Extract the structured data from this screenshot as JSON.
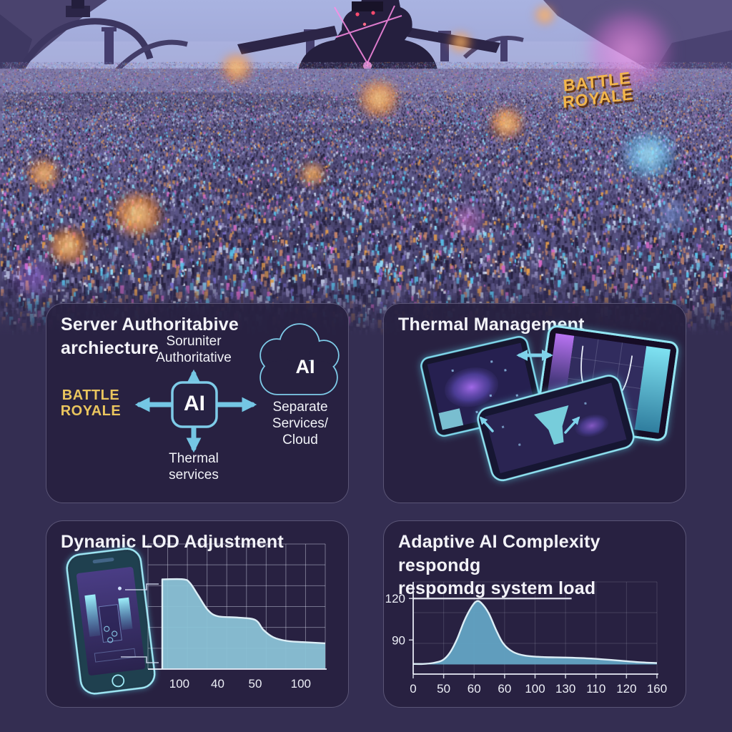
{
  "scene": {
    "sign": {
      "line1": "BATTLE",
      "line2": "ROYALE",
      "color": "#f2b64b"
    }
  },
  "panels": {
    "server_auth": {
      "title": "Server Authoritabive archiecture",
      "top_node": {
        "line1": "Soruniter",
        "line2": "Authoritative"
      },
      "left_node": {
        "line1": "BATTLE",
        "line2": "ROYALE",
        "color": "#eac55e"
      },
      "center_node": "AI",
      "cloud_node": "AI",
      "right_node": {
        "line1": "Separate",
        "line2": "Services/ Cloud"
      },
      "bottom_node": {
        "line1": "Thermal",
        "line2": "services"
      }
    },
    "thermal": {
      "title": "Thermal Management"
    },
    "lod": {
      "title": "Dynamic LOD Adjustment"
    },
    "adaptive": {
      "title_line1": "Adaptive AI Complexity respondg",
      "title_line2": "respomdg system load"
    }
  },
  "colors": {
    "accent_cyan": "#7ecbe8",
    "device_glow": "#5fd8f0",
    "gold": "#eac55e",
    "page_bg": "#342e52",
    "panel_bg": "#272140",
    "title_text": "#f3f3f8",
    "lod_fill": "#8ac2d6",
    "adaptive_fill": "#63a4c4",
    "chart_line": "#dceef6"
  },
  "chart_data": [
    {
      "id": "lod_chart",
      "type": "area",
      "title": "Dynamic LOD Adjustment",
      "xlabel": "",
      "ylabel": "",
      "x_tick_labels": [
        "100",
        "40",
        "50",
        "100"
      ],
      "x_tick_pos_pct": [
        10.5,
        34,
        57,
        85
      ],
      "x_values_pct": [
        0,
        13,
        17,
        22,
        28,
        34,
        46,
        57,
        62,
        68,
        76,
        86,
        100
      ],
      "y_values_pct": [
        73,
        73,
        70,
        60,
        48,
        43,
        42,
        40,
        32,
        26,
        23,
        22,
        21
      ],
      "baseline_pct": 0,
      "left_edge": true,
      "grid": "on",
      "legend": "none",
      "fill": "#8ac2d6",
      "line": "#dceef6",
      "note": "stepped declining LOD level; y-axis unlabeled, values given as % of plot height"
    },
    {
      "id": "adaptive_chart",
      "type": "area",
      "title": "Adaptive AI Complexity respondg respomdg system load",
      "xlabel": "",
      "ylabel": "",
      "x_tick_labels": [
        "0",
        "50",
        "60",
        "60",
        "100",
        "130",
        "110",
        "120",
        "160"
      ],
      "x_tick_pos_pct": [
        0,
        12.5,
        25,
        37.5,
        50,
        62.5,
        75,
        87.5,
        100
      ],
      "y_tick_labels": [
        "120",
        "90"
      ],
      "y_tick_pos_pct": [
        82,
        37
      ],
      "ref_line": {
        "label": "120",
        "y_pct": 82,
        "x_extent_pct": 65
      },
      "x_values_pct": [
        0,
        4,
        8,
        12,
        15,
        18,
        21,
        24,
        26,
        28,
        31,
        34,
        37,
        41,
        46,
        53,
        62,
        72,
        83,
        92,
        100
      ],
      "y_values_pct": [
        11,
        11,
        12,
        15,
        23,
        38,
        58,
        73,
        79,
        77,
        66,
        48,
        33,
        24,
        20,
        18.5,
        18,
        17,
        15,
        13,
        12
      ],
      "baseline_pct": 10.5,
      "left_edge": false,
      "grid": "on",
      "legend": "none",
      "fill": "#63a4c4",
      "line": "#dceef6",
      "note": "bell-shaped AI complexity curve peaking just under the 120 reference line near the third tick"
    }
  ]
}
